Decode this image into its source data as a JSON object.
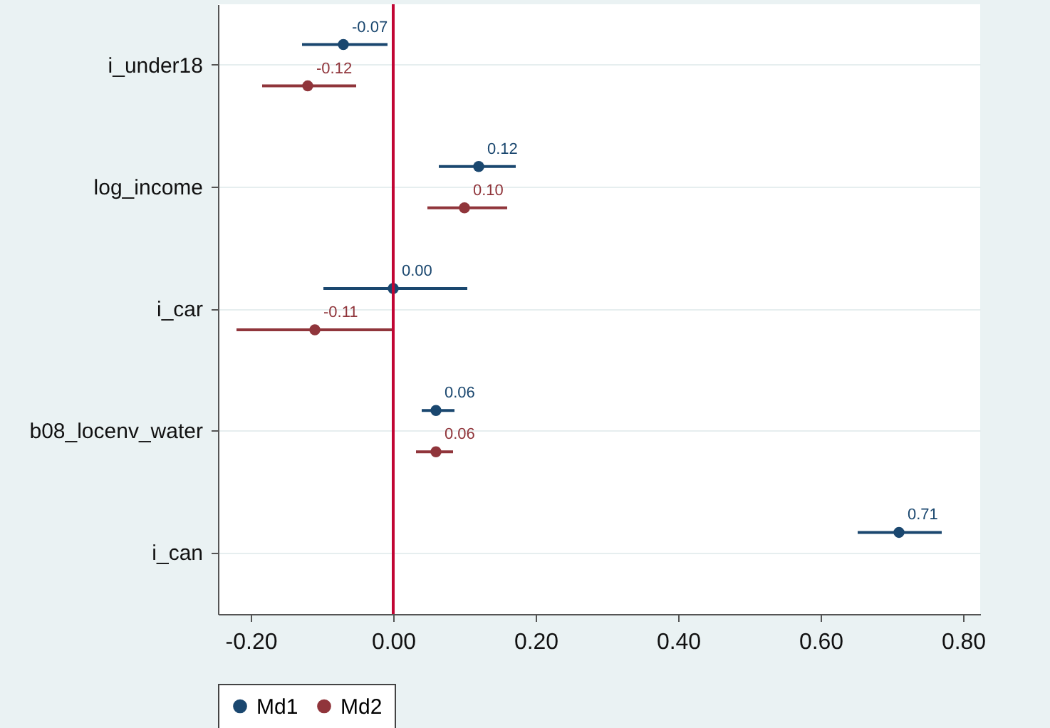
{
  "chart_data": {
    "type": "scatter",
    "orientation": "horizontal",
    "categories": [
      "i_under18",
      "log_income",
      "i_car",
      "b08_locenv_water",
      "i_can"
    ],
    "xlim": [
      -0.246,
      0.824
    ],
    "xticks": [
      {
        "value": -0.2,
        "label": "-0.20"
      },
      {
        "value": 0,
        "label": "0.00"
      },
      {
        "value": 0.2,
        "label": "0.20"
      },
      {
        "value": 0.4,
        "label": "0.40"
      },
      {
        "value": 0.6,
        "label": "0.60"
      },
      {
        "value": 0.8,
        "label": "0.80"
      }
    ],
    "series": [
      {
        "name": "Md1",
        "color": "#1a476f",
        "values": [
          -0.07,
          0.12,
          0.0,
          0.06,
          0.71
        ],
        "errors": [
          [
            -0.128,
            -0.008
          ],
          [
            0.064,
            0.172
          ],
          [
            -0.098,
            0.104
          ],
          [
            0.04,
            0.086
          ],
          [
            0.652,
            0.77
          ]
        ],
        "value_labels": [
          "-0.07",
          "0.12",
          "0.00",
          "0.06",
          "0.71"
        ]
      },
      {
        "name": "Md2",
        "color": "#90353b",
        "values": [
          -0.12,
          0.1,
          -0.11,
          0.06,
          null
        ],
        "errors": [
          [
            -0.184,
            -0.052
          ],
          [
            0.048,
            0.16
          ],
          [
            -0.22,
            0.0
          ],
          [
            0.032,
            0.084
          ],
          null
        ],
        "value_labels": [
          "-0.12",
          "0.10",
          "-0.11",
          "0.06",
          null
        ]
      }
    ],
    "ref_lines": [
      {
        "axis": "x",
        "value": 0,
        "color": "#c10534"
      }
    ],
    "grid": "y",
    "legend": "bottom",
    "marker": "circle"
  }
}
